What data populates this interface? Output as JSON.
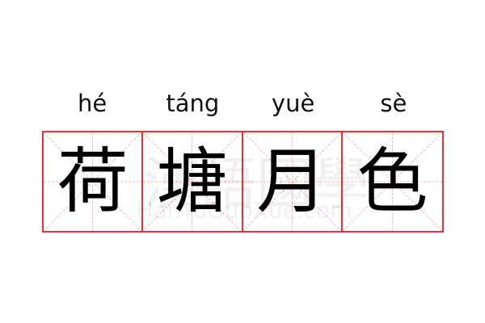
{
  "pinyin": [
    "hé",
    "táng",
    "yuè",
    "sè"
  ],
  "characters": [
    "荷",
    "塘",
    "月",
    "色"
  ],
  "watermark": {
    "chinese": "漢語國學",
    "latin": "HanYuGuoXue.com"
  },
  "colors": {
    "grid_border": "#f03030",
    "guide_lines": "#f8a0a0",
    "text": "#000000"
  }
}
